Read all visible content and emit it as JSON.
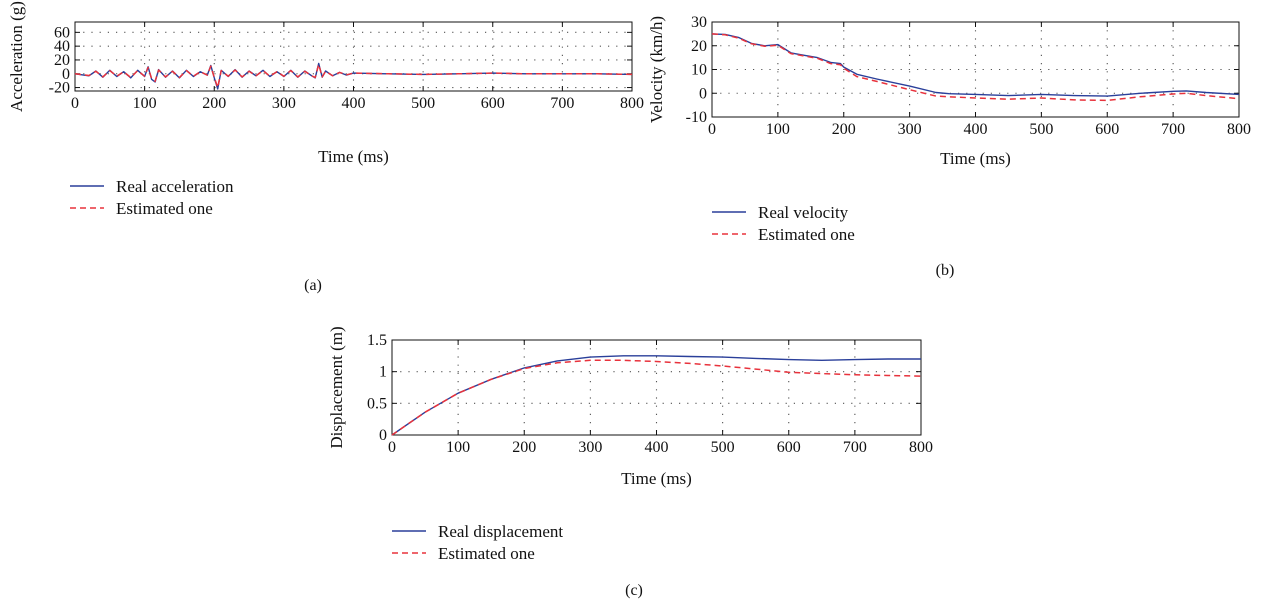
{
  "colors": {
    "real": "#2a3f9a",
    "estimated": "#e8323c"
  },
  "chart_data": [
    {
      "type": "line",
      "panel_label": "(a)",
      "xlabel": "Time (ms)",
      "ylabel": "Acceleration (g)",
      "xlim": [
        0,
        800
      ],
      "ylim": [
        -25,
        75
      ],
      "xticks": [
        0,
        100,
        200,
        300,
        400,
        500,
        600,
        700,
        800
      ],
      "yticks": [
        -20,
        0,
        20,
        40,
        60
      ],
      "grid": true,
      "legend": "below",
      "series": [
        {
          "name": "Real acceleration",
          "style": "solid",
          "x": [
            0,
            20,
            30,
            40,
            50,
            60,
            70,
            80,
            90,
            100,
            105,
            110,
            115,
            120,
            130,
            140,
            150,
            160,
            170,
            180,
            190,
            195,
            200,
            205,
            210,
            220,
            230,
            240,
            250,
            260,
            270,
            280,
            290,
            300,
            310,
            320,
            330,
            340,
            345,
            350,
            355,
            360,
            370,
            380,
            390,
            400,
            450,
            500,
            550,
            600,
            650,
            700,
            750,
            800
          ],
          "y": [
            0,
            -3,
            4,
            -5,
            5,
            -4,
            3,
            -6,
            5,
            -4,
            10,
            -8,
            -12,
            6,
            -5,
            4,
            -6,
            5,
            -4,
            3,
            -2,
            12,
            -6,
            -22,
            5,
            -4,
            6,
            -5,
            4,
            -3,
            5,
            -4,
            3,
            -4,
            5,
            -5,
            4,
            -3,
            -6,
            15,
            -5,
            4,
            -3,
            2,
            -2,
            1,
            0,
            -1,
            0,
            1,
            0,
            0,
            0,
            -1
          ]
        },
        {
          "name": "Estimated one",
          "style": "dashed",
          "x": [
            0,
            20,
            30,
            40,
            50,
            60,
            70,
            80,
            90,
            100,
            105,
            110,
            115,
            120,
            130,
            140,
            150,
            160,
            170,
            180,
            190,
            195,
            200,
            205,
            210,
            220,
            230,
            240,
            250,
            260,
            270,
            280,
            290,
            300,
            310,
            320,
            330,
            340,
            345,
            350,
            355,
            360,
            370,
            380,
            390,
            400,
            450,
            500,
            550,
            600,
            650,
            700,
            750,
            800
          ],
          "y": [
            0,
            -2.5,
            3.5,
            -4.5,
            4.5,
            -3.5,
            3,
            -5.5,
            4.5,
            -3.5,
            9,
            -7,
            -11,
            5.5,
            -4.5,
            3.5,
            -5.5,
            4.5,
            -3.5,
            3,
            -2,
            11,
            -5.5,
            -20,
            4.5,
            -3.5,
            5.5,
            -4.5,
            3.5,
            -3,
            4.5,
            -3.5,
            3,
            -3.5,
            4.5,
            -4.5,
            3.5,
            -3,
            -5.5,
            13.5,
            -4.5,
            3.5,
            -3,
            2,
            -1.5,
            1,
            0,
            -1,
            0,
            1,
            0,
            0,
            0,
            -1
          ]
        }
      ]
    },
    {
      "type": "line",
      "panel_label": "(b)",
      "xlabel": "Time (ms)",
      "ylabel": "Velocity (km/h)",
      "xlim": [
        0,
        800
      ],
      "ylim": [
        -10,
        30
      ],
      "xticks": [
        0,
        100,
        200,
        300,
        400,
        500,
        600,
        700,
        800
      ],
      "yticks": [
        -10,
        0,
        10,
        20,
        30
      ],
      "grid": true,
      "legend": "below",
      "series": [
        {
          "name": "Real velocity",
          "style": "solid",
          "x": [
            0,
            20,
            40,
            60,
            80,
            100,
            120,
            140,
            160,
            180,
            195,
            200,
            220,
            250,
            300,
            340,
            360,
            400,
            450,
            500,
            550,
            600,
            650,
            700,
            720,
            750,
            800
          ],
          "y": [
            25,
            24.8,
            23.5,
            21,
            20,
            20.5,
            17,
            16,
            15,
            13,
            12.5,
            11,
            8,
            6,
            3,
            0.3,
            -0.2,
            -0.5,
            -1,
            -0.5,
            -1,
            -1.2,
            0,
            0.8,
            1,
            0.3,
            -0.5
          ]
        },
        {
          "name": "Estimated one",
          "style": "dashed",
          "x": [
            0,
            20,
            40,
            60,
            80,
            100,
            120,
            140,
            160,
            180,
            195,
            200,
            220,
            250,
            300,
            340,
            360,
            400,
            450,
            500,
            550,
            600,
            650,
            700,
            720,
            750,
            800
          ],
          "y": [
            25,
            24.6,
            23.2,
            20.8,
            19.8,
            20.2,
            16.7,
            15.7,
            14.7,
            12.5,
            12,
            10.5,
            7,
            5,
            1.5,
            -1.2,
            -1.5,
            -2,
            -2.5,
            -2,
            -2.8,
            -3,
            -1.5,
            -0.3,
            0,
            -1,
            -2.3
          ]
        }
      ]
    },
    {
      "type": "line",
      "panel_label": "(c)",
      "xlabel": "Time (ms)",
      "ylabel": "Displacement (m)",
      "xlim": [
        0,
        800
      ],
      "ylim": [
        0,
        1.5
      ],
      "xticks": [
        0,
        100,
        200,
        300,
        400,
        500,
        600,
        700,
        800
      ],
      "yticks": [
        0,
        0.5,
        1,
        1.5
      ],
      "ytick_labels": [
        "0",
        "0.5",
        "1",
        "1.5"
      ],
      "grid": true,
      "legend": "below",
      "series": [
        {
          "name": "Real displacement",
          "style": "solid",
          "x": [
            0,
            50,
            100,
            150,
            200,
            250,
            300,
            350,
            400,
            450,
            500,
            550,
            600,
            650,
            700,
            750,
            800
          ],
          "y": [
            0,
            0.36,
            0.66,
            0.88,
            1.06,
            1.17,
            1.23,
            1.25,
            1.25,
            1.24,
            1.23,
            1.21,
            1.19,
            1.18,
            1.19,
            1.2,
            1.2
          ]
        },
        {
          "name": "Estimated one",
          "style": "dashed",
          "x": [
            0,
            50,
            100,
            150,
            200,
            250,
            300,
            350,
            400,
            450,
            500,
            550,
            600,
            650,
            700,
            750,
            800
          ],
          "y": [
            0,
            0.36,
            0.66,
            0.88,
            1.05,
            1.14,
            1.18,
            1.18,
            1.16,
            1.13,
            1.09,
            1.04,
            0.99,
            0.97,
            0.95,
            0.94,
            0.93
          ]
        }
      ]
    }
  ]
}
